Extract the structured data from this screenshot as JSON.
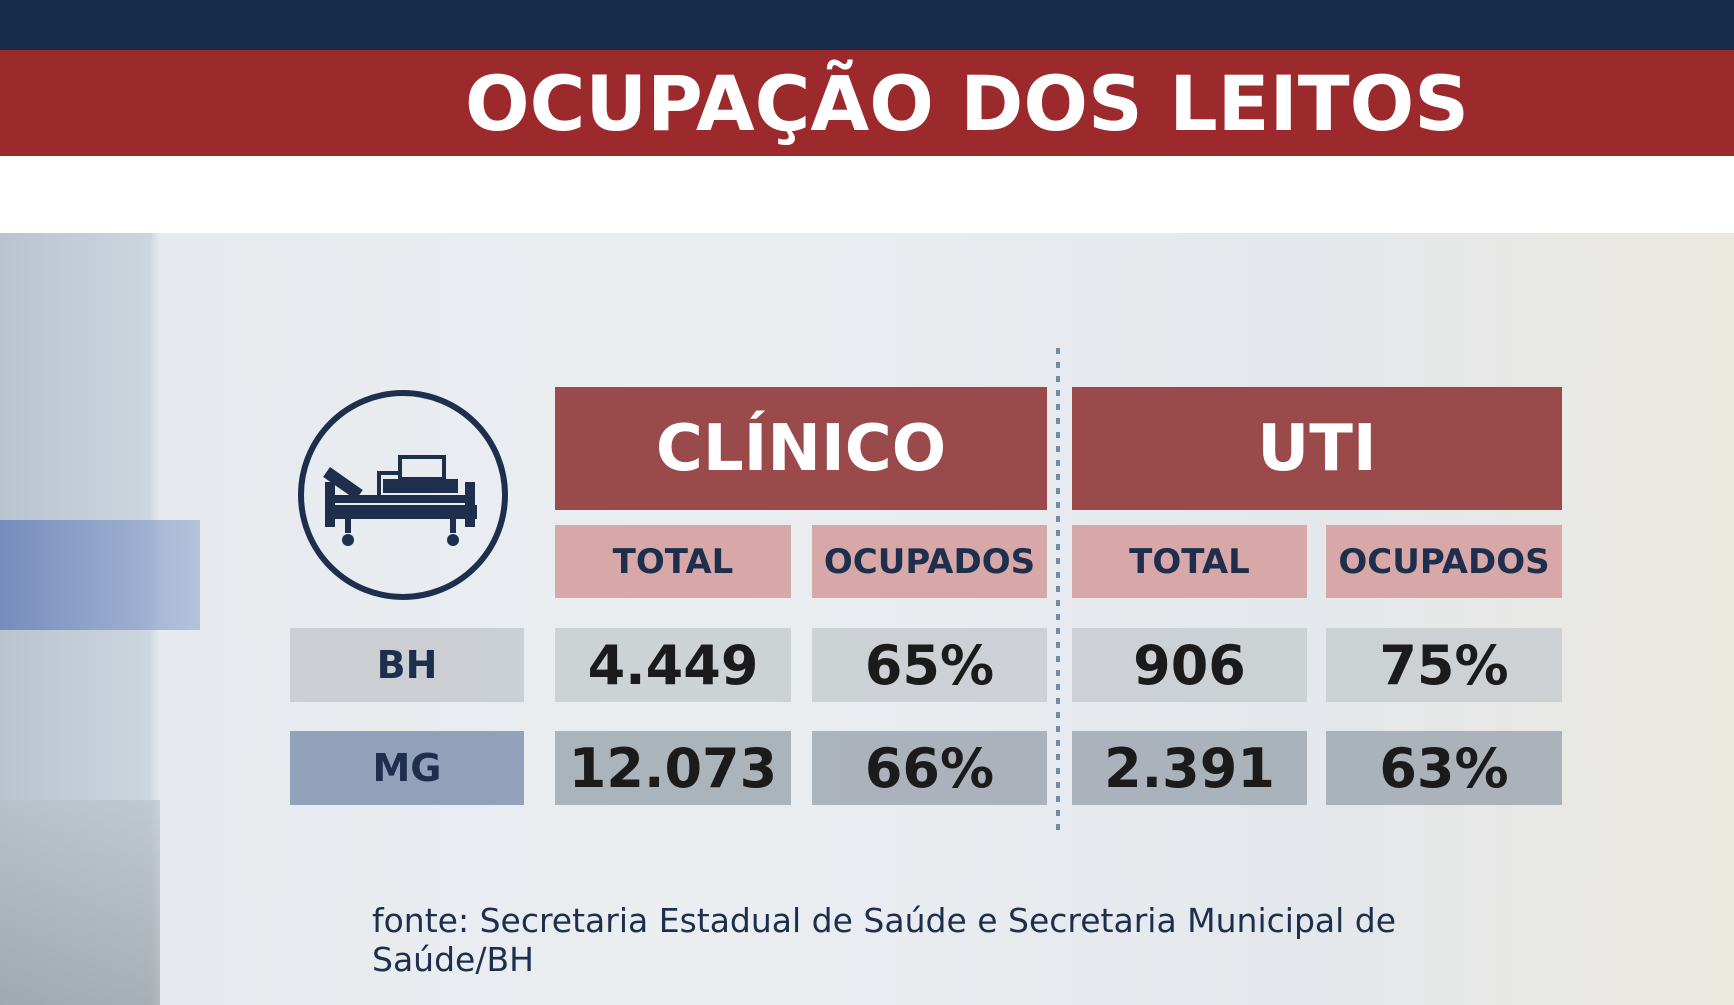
{
  "header": {
    "title": "OCUPAÇÃO DOS LEITOS"
  },
  "table": {
    "groups": [
      "CLÍNICO",
      "UTI"
    ],
    "columns": [
      "TOTAL",
      "OCUPADOS",
      "TOTAL",
      "OCUPADOS"
    ],
    "rows": [
      {
        "label": "BH",
        "cells": [
          "4.449",
          "65%",
          "906",
          "75%"
        ]
      },
      {
        "label": "MG",
        "cells": [
          "12.073",
          "66%",
          "2.391",
          "63%"
        ]
      }
    ]
  },
  "source": "fonte: Secretaria Estadual de Saúde e Secretaria Municipal de Saúde/BH"
}
